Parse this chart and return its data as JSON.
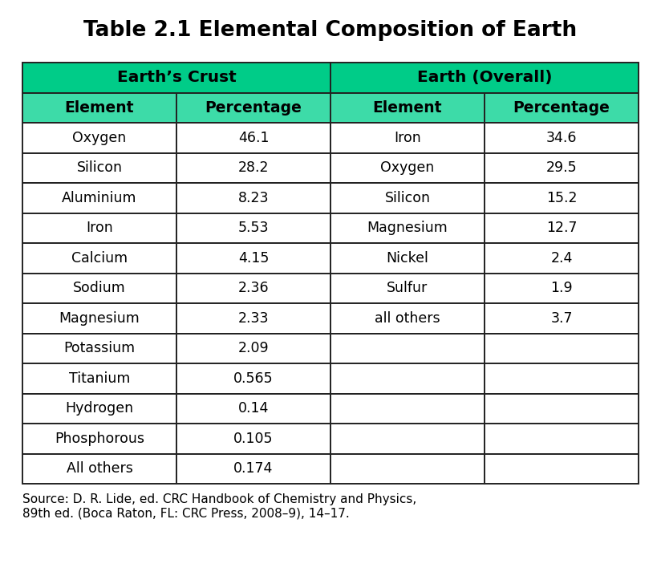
{
  "title": "Table 2.1 Elemental Composition of Earth",
  "title_fontsize": 19,
  "header1_text": "Earth’s Crust",
  "header2_text": "Earth (Overall)",
  "col_headers": [
    "Element",
    "Percentage",
    "Element",
    "Percentage"
  ],
  "crust_data": [
    [
      "Oxygen",
      "46.1"
    ],
    [
      "Silicon",
      "28.2"
    ],
    [
      "Aluminium",
      "8.23"
    ],
    [
      "Iron",
      "5.53"
    ],
    [
      "Calcium",
      "4.15"
    ],
    [
      "Sodium",
      "2.36"
    ],
    [
      "Magnesium",
      "2.33"
    ],
    [
      "Potassium",
      "2.09"
    ],
    [
      "Titanium",
      "0.565"
    ],
    [
      "Hydrogen",
      "0.14"
    ],
    [
      "Phosphorous",
      "0.105"
    ],
    [
      "All others",
      "0.174"
    ]
  ],
  "overall_data": [
    [
      "Iron",
      "34.6"
    ],
    [
      "Oxygen",
      "29.5"
    ],
    [
      "Silicon",
      "15.2"
    ],
    [
      "Magnesium",
      "12.7"
    ],
    [
      "Nickel",
      "2.4"
    ],
    [
      "Sulfur",
      "1.9"
    ],
    [
      "all others",
      "3.7"
    ],
    [
      "",
      ""
    ],
    [
      "",
      ""
    ],
    [
      "",
      ""
    ],
    [
      "",
      ""
    ],
    [
      "",
      ""
    ]
  ],
  "source_text": "Source: D. R. Lide, ed. CRC Handbook of Chemistry and Physics,\n89th ed. (Boca Raton, FL: CRC Press, 2008–9), 14–17.",
  "header_group_bg": "#00cc88",
  "header_col_bg": "#3ddba8",
  "row_bg_white": "#ffffff",
  "border_color": "#222222",
  "text_color": "#000000",
  "header_text_color": "#000000",
  "bg_color": "#ffffff",
  "cell_fontsize": 12.5,
  "header_fontsize": 13.5,
  "group_header_fontsize": 14.5,
  "source_fontsize": 11,
  "fig_width": 8.24,
  "fig_height": 7.33,
  "dpi": 100
}
